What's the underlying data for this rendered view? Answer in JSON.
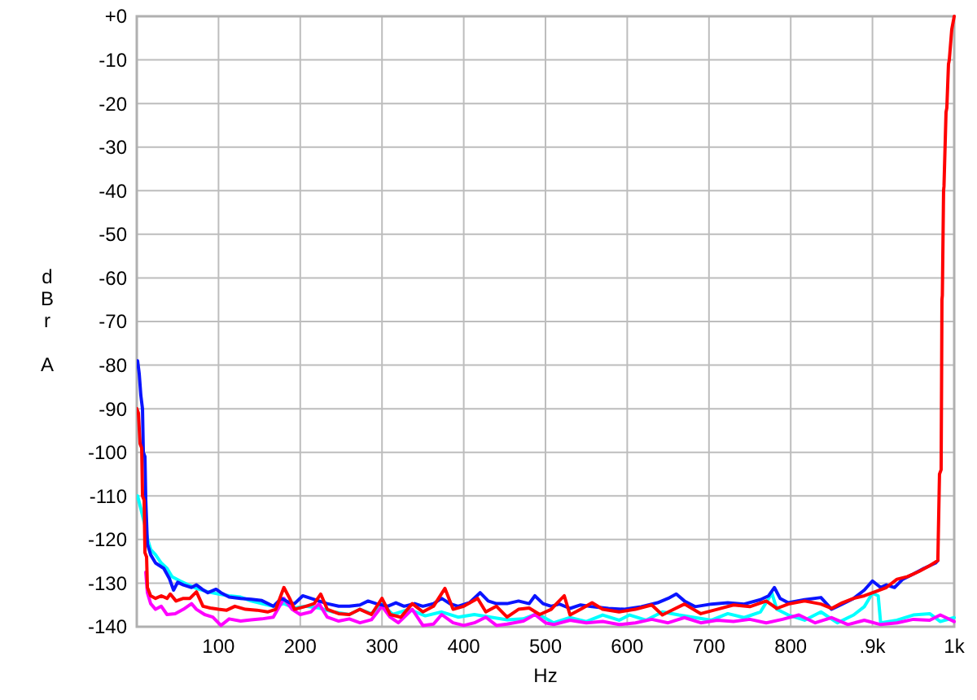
{
  "chart_data": {
    "type": "line",
    "xlabel": "Hz",
    "ylabel": "dBr A",
    "xlim": [
      0,
      1000
    ],
    "ylim": [
      -140,
      0
    ],
    "xticks": [
      100,
      200,
      300,
      400,
      500,
      600,
      700,
      800,
      {
        "value": 900,
        "label": ".9k"
      },
      {
        "value": 1000,
        "label": "1k"
      }
    ],
    "yticks": [
      {
        "value": 0,
        "label": "+0"
      },
      -10,
      -20,
      -30,
      -40,
      -50,
      -60,
      -70,
      -80,
      -90,
      -100,
      -110,
      -120,
      -130,
      -140
    ],
    "grid": true,
    "series": [
      {
        "color": "#00ffff",
        "x": [
          1,
          5,
          10,
          13,
          17,
          23,
          30,
          37,
          43,
          53,
          63,
          73,
          87,
          100,
          113,
          127,
          140,
          153,
          167,
          180,
          193,
          207,
          223,
          240,
          260,
          273,
          287,
          300,
          313,
          333,
          353,
          373,
          393,
          413,
          433,
          453,
          473,
          490,
          510,
          530,
          550,
          570,
          590,
          603,
          623,
          643,
          663,
          683,
          703,
          723,
          743,
          763,
          777,
          783,
          797,
          817,
          837,
          857,
          877,
          890,
          900,
          907,
          910,
          930,
          950,
          970,
          983,
          1000
        ],
        "values": [
          -110,
          -113,
          -116.7,
          -119.8,
          -122.3,
          -123.5,
          -125.4,
          -126.6,
          -128.5,
          -129.5,
          -130.4,
          -131.2,
          -132,
          -132.5,
          -132.9,
          -133.2,
          -134.1,
          -134.7,
          -135.3,
          -134.7,
          -135.7,
          -135.3,
          -135.7,
          -136.6,
          -137.2,
          -136,
          -137,
          -134.7,
          -137.2,
          -136,
          -137.5,
          -136.6,
          -137.8,
          -137.2,
          -137.8,
          -138.4,
          -138.2,
          -137,
          -139.1,
          -137.9,
          -138.8,
          -137.3,
          -138.5,
          -137.3,
          -138.5,
          -136.6,
          -137.3,
          -137.9,
          -138.5,
          -137,
          -137.9,
          -136.6,
          -132.3,
          -136,
          -137.3,
          -138.5,
          -136.6,
          -139.1,
          -137.3,
          -135.4,
          -132.3,
          -132.9,
          -139.1,
          -138.5,
          -137.3,
          -137,
          -138.8,
          -137.9
        ]
      },
      {
        "color": "#ff00ff",
        "x": [
          11,
          13,
          17,
          23,
          30,
          37,
          47,
          57,
          67,
          73,
          83,
          93,
          103,
          113,
          127,
          140,
          153,
          167,
          180,
          190,
          200,
          213,
          223,
          233,
          247,
          260,
          273,
          287,
          300,
          310,
          320,
          337,
          350,
          363,
          373,
          387,
          400,
          413,
          427,
          440,
          453,
          473,
          487,
          500,
          510,
          530,
          550,
          570,
          590,
          610,
          630,
          650,
          670,
          690,
          710,
          730,
          750,
          770,
          790,
          810,
          830,
          850,
          870,
          890,
          910,
          930,
          950,
          970,
          983,
          1000
        ],
        "values": [
          -127.5,
          -132.2,
          -134.7,
          -136,
          -135.3,
          -137.2,
          -137,
          -136,
          -134.7,
          -136,
          -137.2,
          -137.8,
          -139.7,
          -138.2,
          -138.7,
          -138.4,
          -138.2,
          -137.8,
          -133.5,
          -136,
          -137.2,
          -136.6,
          -134.7,
          -137.8,
          -138.7,
          -138.2,
          -139.1,
          -138.4,
          -135.3,
          -137.8,
          -139.1,
          -136,
          -139.7,
          -139.4,
          -137.2,
          -139.1,
          -139.7,
          -139.1,
          -137.8,
          -139.7,
          -139.4,
          -138.7,
          -137.2,
          -139.1,
          -139.5,
          -138.5,
          -139.1,
          -138.8,
          -139.5,
          -139.1,
          -138.3,
          -139.1,
          -137.9,
          -139.1,
          -138.5,
          -138.8,
          -138.3,
          -139.1,
          -138.3,
          -137.3,
          -139.1,
          -137.9,
          -139.5,
          -138.5,
          -139.5,
          -139.1,
          -138.3,
          -138.5,
          -137.3,
          -138.8
        ]
      },
      {
        "color": "#0a14ff",
        "x": [
          1,
          3,
          5,
          7,
          8,
          10,
          11,
          13,
          17,
          23,
          33,
          40,
          45,
          50,
          57,
          67,
          73,
          80,
          87,
          97,
          103,
          113,
          127,
          140,
          153,
          167,
          177,
          187,
          193,
          203,
          213,
          223,
          233,
          247,
          260,
          273,
          283,
          293,
          307,
          317,
          327,
          340,
          350,
          363,
          373,
          383,
          393,
          407,
          420,
          430,
          440,
          453,
          467,
          480,
          487,
          497,
          507,
          517,
          530,
          543,
          557,
          577,
          597,
          617,
          637,
          650,
          660,
          670,
          683,
          703,
          723,
          743,
          763,
          773,
          780,
          787,
          797,
          817,
          837,
          850,
          863,
          877,
          890,
          900,
          910,
          917,
          927,
          937,
          950,
          963,
          977,
          980
        ],
        "values": [
          -79,
          -82,
          -87,
          -90,
          -100,
          -101,
          -111,
          -121,
          -123.5,
          -125.4,
          -126.6,
          -129,
          -131.6,
          -129.8,
          -130.4,
          -131,
          -130.4,
          -131.4,
          -132.2,
          -131.4,
          -132.2,
          -133.2,
          -133.5,
          -133.7,
          -134,
          -135.3,
          -133.5,
          -134.5,
          -134.7,
          -132.9,
          -133.5,
          -134.1,
          -134.7,
          -135.3,
          -135.3,
          -135,
          -134.1,
          -134.7,
          -135.3,
          -134.5,
          -135.3,
          -134.7,
          -135.3,
          -134.7,
          -133.5,
          -134.7,
          -135.3,
          -134.5,
          -132.2,
          -134.1,
          -134.7,
          -134.7,
          -134.1,
          -134.7,
          -132.9,
          -134.7,
          -135.3,
          -134.8,
          -135.8,
          -135,
          -135.4,
          -135.8,
          -136,
          -135.4,
          -134.5,
          -133.5,
          -132.5,
          -134.1,
          -135.4,
          -134.8,
          -134.5,
          -134.8,
          -133.8,
          -132.9,
          -131,
          -133.5,
          -134.5,
          -133.8,
          -133.3,
          -136,
          -134.8,
          -133.5,
          -131.6,
          -129.5,
          -131,
          -130.4,
          -131,
          -129.1,
          -127.9,
          -126.6,
          -125.4,
          -124.8
        ]
      },
      {
        "color": "#ff0000",
        "x": [
          0,
          2,
          4,
          6,
          7,
          9,
          10,
          12,
          13,
          17,
          23,
          30,
          37,
          41,
          48,
          57,
          65,
          73,
          81,
          90,
          100,
          110,
          120,
          133,
          147,
          160,
          170,
          180,
          187,
          193,
          207,
          217,
          225,
          233,
          247,
          260,
          273,
          287,
          300,
          310,
          323,
          337,
          350,
          363,
          377,
          387,
          400,
          417,
          427,
          440,
          453,
          467,
          480,
          493,
          507,
          513,
          523,
          530,
          543,
          557,
          570,
          590,
          610,
          630,
          643,
          657,
          670,
          690,
          710,
          730,
          750,
          770,
          783,
          797,
          817,
          837,
          850,
          863,
          877,
          890,
          903,
          917,
          930,
          943,
          957,
          970,
          980,
          982,
          984,
          984.5,
          985,
          985.5,
          987,
          987.5,
          990,
          991,
          993,
          994,
          997,
          1000
        ],
        "values": [
          -90,
          -91,
          -98,
          -99,
          -110,
          -111,
          -123,
          -124,
          -131,
          -132.9,
          -133.5,
          -132.9,
          -133.5,
          -132.5,
          -134.1,
          -133.5,
          -133.5,
          -132,
          -135.3,
          -135.7,
          -136,
          -136.2,
          -135.3,
          -136,
          -136.2,
          -136.6,
          -136,
          -131,
          -133.5,
          -136,
          -135.3,
          -134.7,
          -132.5,
          -136,
          -137,
          -137.2,
          -136,
          -137.2,
          -133.5,
          -137.2,
          -137.8,
          -134.7,
          -136.6,
          -135.3,
          -131.2,
          -136,
          -135.3,
          -133.5,
          -136.6,
          -135.3,
          -137.8,
          -136,
          -135.7,
          -137.2,
          -136,
          -134.8,
          -132.9,
          -137.3,
          -136,
          -134.5,
          -136,
          -136.6,
          -136,
          -135,
          -137.3,
          -136,
          -134.8,
          -137,
          -136,
          -135,
          -135.4,
          -134.1,
          -135.8,
          -134.8,
          -134.1,
          -134.8,
          -135.8,
          -134.5,
          -133.5,
          -132.9,
          -132,
          -131,
          -129.1,
          -128.5,
          -127.3,
          -126,
          -124.8,
          -105,
          -104,
          -86,
          -65,
          -64,
          -40,
          -39,
          -22,
          -21,
          -11,
          -10,
          -3,
          0
        ]
      }
    ]
  }
}
